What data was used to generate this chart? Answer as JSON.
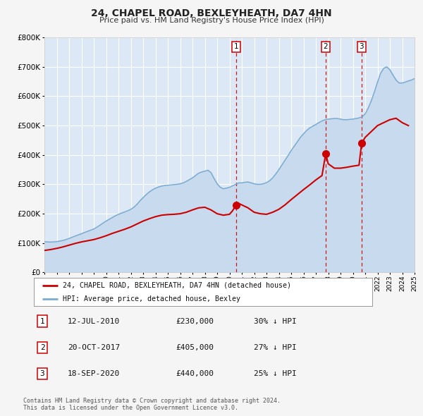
{
  "title": "24, CHAPEL ROAD, BEXLEYHEATH, DA7 4HN",
  "subtitle": "Price paid vs. HM Land Registry's House Price Index (HPI)",
  "ylim": [
    0,
    800000
  ],
  "yticks": [
    0,
    100000,
    200000,
    300000,
    400000,
    500000,
    600000,
    700000,
    800000
  ],
  "ytick_labels": [
    "£0",
    "£100K",
    "£200K",
    "£300K",
    "£400K",
    "£500K",
    "£600K",
    "£700K",
    "£800K"
  ],
  "fig_bg_color": "#f5f5f5",
  "plot_bg_color": "#dce8f5",
  "grid_color": "#ffffff",
  "red_line_color": "#cc0000",
  "blue_line_color": "#7aaad0",
  "fill_color": "#c8dbee",
  "sale_marker_color": "#cc0000",
  "sale_dates": [
    2010.53,
    2017.8,
    2020.71
  ],
  "sale_values": [
    230000,
    405000,
    440000
  ],
  "sale_labels": [
    "1",
    "2",
    "3"
  ],
  "vline_color": "#cc0000",
  "legend_label_red": "24, CHAPEL ROAD, BEXLEYHEATH, DA7 4HN (detached house)",
  "legend_label_blue": "HPI: Average price, detached house, Bexley",
  "table_rows": [
    {
      "num": "1",
      "date": "12-JUL-2010",
      "price": "£230,000",
      "hpi": "30% ↓ HPI"
    },
    {
      "num": "2",
      "date": "20-OCT-2017",
      "price": "£405,000",
      "hpi": "27% ↓ HPI"
    },
    {
      "num": "3",
      "date": "18-SEP-2020",
      "price": "£440,000",
      "hpi": "25% ↓ HPI"
    }
  ],
  "footnote": "Contains HM Land Registry data © Crown copyright and database right 2024.\nThis data is licensed under the Open Government Licence v3.0.",
  "xmin": 1995,
  "xmax": 2025,
  "hpi_years": [
    1995.0,
    1995.25,
    1995.5,
    1995.75,
    1996.0,
    1996.25,
    1996.5,
    1996.75,
    1997.0,
    1997.25,
    1997.5,
    1997.75,
    1998.0,
    1998.25,
    1998.5,
    1998.75,
    1999.0,
    1999.25,
    1999.5,
    1999.75,
    2000.0,
    2000.25,
    2000.5,
    2000.75,
    2001.0,
    2001.25,
    2001.5,
    2001.75,
    2002.0,
    2002.25,
    2002.5,
    2002.75,
    2003.0,
    2003.25,
    2003.5,
    2003.75,
    2004.0,
    2004.25,
    2004.5,
    2004.75,
    2005.0,
    2005.25,
    2005.5,
    2005.75,
    2006.0,
    2006.25,
    2006.5,
    2006.75,
    2007.0,
    2007.25,
    2007.5,
    2007.75,
    2008.0,
    2008.25,
    2008.5,
    2008.75,
    2009.0,
    2009.25,
    2009.5,
    2009.75,
    2010.0,
    2010.25,
    2010.5,
    2010.75,
    2011.0,
    2011.25,
    2011.5,
    2011.75,
    2012.0,
    2012.25,
    2012.5,
    2012.75,
    2013.0,
    2013.25,
    2013.5,
    2013.75,
    2014.0,
    2014.25,
    2014.5,
    2014.75,
    2015.0,
    2015.25,
    2015.5,
    2015.75,
    2016.0,
    2016.25,
    2016.5,
    2016.75,
    2017.0,
    2017.25,
    2017.5,
    2017.75,
    2018.0,
    2018.25,
    2018.5,
    2018.75,
    2019.0,
    2019.25,
    2019.5,
    2019.75,
    2020.0,
    2020.25,
    2020.5,
    2020.75,
    2021.0,
    2021.25,
    2021.5,
    2021.75,
    2022.0,
    2022.25,
    2022.5,
    2022.75,
    2023.0,
    2023.25,
    2023.5,
    2023.75,
    2024.0,
    2024.25,
    2024.5,
    2024.75,
    2025.0
  ],
  "hpi_values": [
    105000,
    104000,
    103500,
    104000,
    105000,
    107000,
    109000,
    112000,
    116000,
    120000,
    124000,
    128000,
    132000,
    136000,
    140000,
    144000,
    148000,
    154000,
    161000,
    168000,
    175000,
    181000,
    187000,
    193000,
    198000,
    202000,
    206000,
    210000,
    215000,
    222000,
    232000,
    244000,
    255000,
    265000,
    274000,
    281000,
    287000,
    291000,
    294000,
    296000,
    297000,
    298000,
    299000,
    300000,
    302000,
    305000,
    310000,
    316000,
    322000,
    330000,
    338000,
    342000,
    345000,
    348000,
    340000,
    320000,
    302000,
    290000,
    285000,
    287000,
    290000,
    295000,
    300000,
    305000,
    305000,
    307000,
    308000,
    305000,
    302000,
    300000,
    300000,
    302000,
    306000,
    312000,
    322000,
    335000,
    350000,
    366000,
    382000,
    398000,
    415000,
    430000,
    445000,
    460000,
    472000,
    483000,
    492000,
    498000,
    504000,
    510000,
    516000,
    520000,
    522000,
    523000,
    524000,
    524000,
    522000,
    520000,
    520000,
    521000,
    522000,
    524000,
    526000,
    530000,
    540000,
    560000,
    585000,
    615000,
    648000,
    678000,
    695000,
    700000,
    690000,
    672000,
    655000,
    645000,
    645000,
    648000,
    652000,
    655000,
    660000
  ],
  "red_years": [
    1995.0,
    1995.5,
    1996.0,
    1996.5,
    1997.0,
    1997.5,
    1998.0,
    1998.5,
    1999.0,
    1999.5,
    2000.0,
    2000.5,
    2001.0,
    2001.5,
    2002.0,
    2002.5,
    2003.0,
    2003.5,
    2004.0,
    2004.5,
    2005.0,
    2005.5,
    2006.0,
    2006.5,
    2007.0,
    2007.5,
    2008.0,
    2008.5,
    2009.0,
    2009.5,
    2010.0,
    2010.25,
    2010.53,
    2010.75,
    2011.0,
    2011.5,
    2012.0,
    2012.5,
    2013.0,
    2013.5,
    2014.0,
    2014.5,
    2015.0,
    2015.5,
    2016.0,
    2016.5,
    2017.0,
    2017.5,
    2017.8,
    2018.0,
    2018.5,
    2019.0,
    2019.5,
    2020.0,
    2020.5,
    2020.71,
    2021.0,
    2021.5,
    2022.0,
    2022.5,
    2023.0,
    2023.5,
    2024.0,
    2024.5
  ],
  "red_values": [
    75000,
    78000,
    82000,
    87000,
    93000,
    99000,
    104000,
    108000,
    112000,
    118000,
    125000,
    133000,
    140000,
    147000,
    155000,
    165000,
    175000,
    183000,
    190000,
    195000,
    197000,
    198000,
    200000,
    205000,
    213000,
    220000,
    222000,
    213000,
    200000,
    195000,
    198000,
    210000,
    230000,
    235000,
    230000,
    220000,
    205000,
    200000,
    198000,
    205000,
    215000,
    230000,
    248000,
    265000,
    282000,
    298000,
    315000,
    330000,
    405000,
    370000,
    355000,
    355000,
    358000,
    362000,
    365000,
    440000,
    460000,
    480000,
    500000,
    510000,
    520000,
    525000,
    510000,
    500000
  ]
}
